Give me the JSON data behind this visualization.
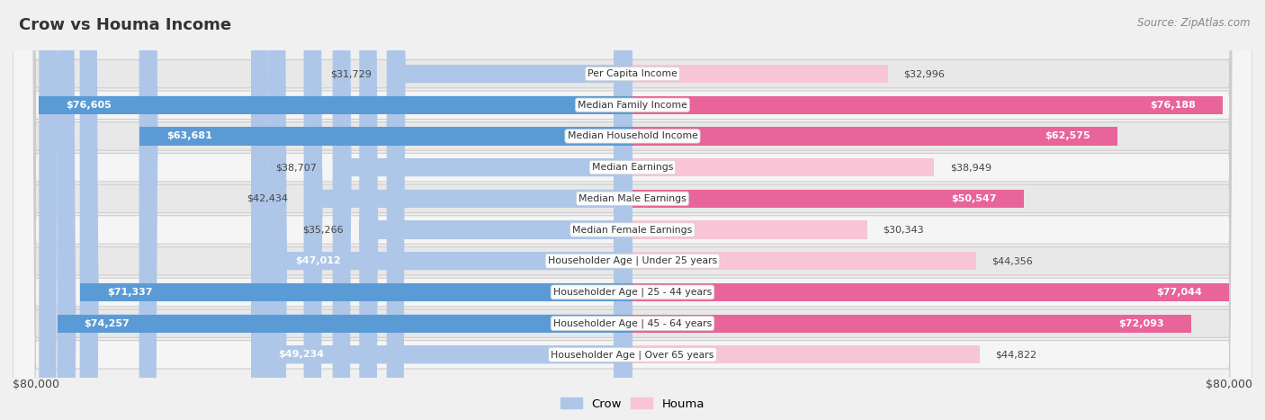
{
  "title": "Crow vs Houma Income",
  "source": "Source: ZipAtlas.com",
  "categories": [
    "Per Capita Income",
    "Median Family Income",
    "Median Household Income",
    "Median Earnings",
    "Median Male Earnings",
    "Median Female Earnings",
    "Householder Age | Under 25 years",
    "Householder Age | 25 - 44 years",
    "Householder Age | 45 - 64 years",
    "Householder Age | Over 65 years"
  ],
  "crow_values": [
    31729,
    76605,
    63681,
    38707,
    42434,
    35266,
    47012,
    71337,
    74257,
    49234
  ],
  "houma_values": [
    32996,
    76188,
    62575,
    38949,
    50547,
    30343,
    44356,
    77044,
    72093,
    44822
  ],
  "crow_labels": [
    "$31,729",
    "$76,605",
    "$63,681",
    "$38,707",
    "$42,434",
    "$35,266",
    "$47,012",
    "$71,337",
    "$74,257",
    "$49,234"
  ],
  "houma_labels": [
    "$32,996",
    "$76,188",
    "$62,575",
    "$38,949",
    "$50,547",
    "$30,343",
    "$44,356",
    "$77,044",
    "$72,093",
    "$44,822"
  ],
  "crow_color_light": "#aec6e8",
  "crow_color_dark": "#5b9bd5",
  "houma_color_light": "#f7c5d5",
  "houma_color_dark": "#e8649a",
  "max_val": 80000,
  "x_label_left": "$80,000",
  "x_label_right": "$80,000",
  "background_color": "#f0f0f0",
  "row_bg_even": "#e8e8e8",
  "row_bg_odd": "#f5f5f5",
  "inside_label_threshold": 45000,
  "legend_crow": "Crow",
  "legend_houma": "Houma"
}
